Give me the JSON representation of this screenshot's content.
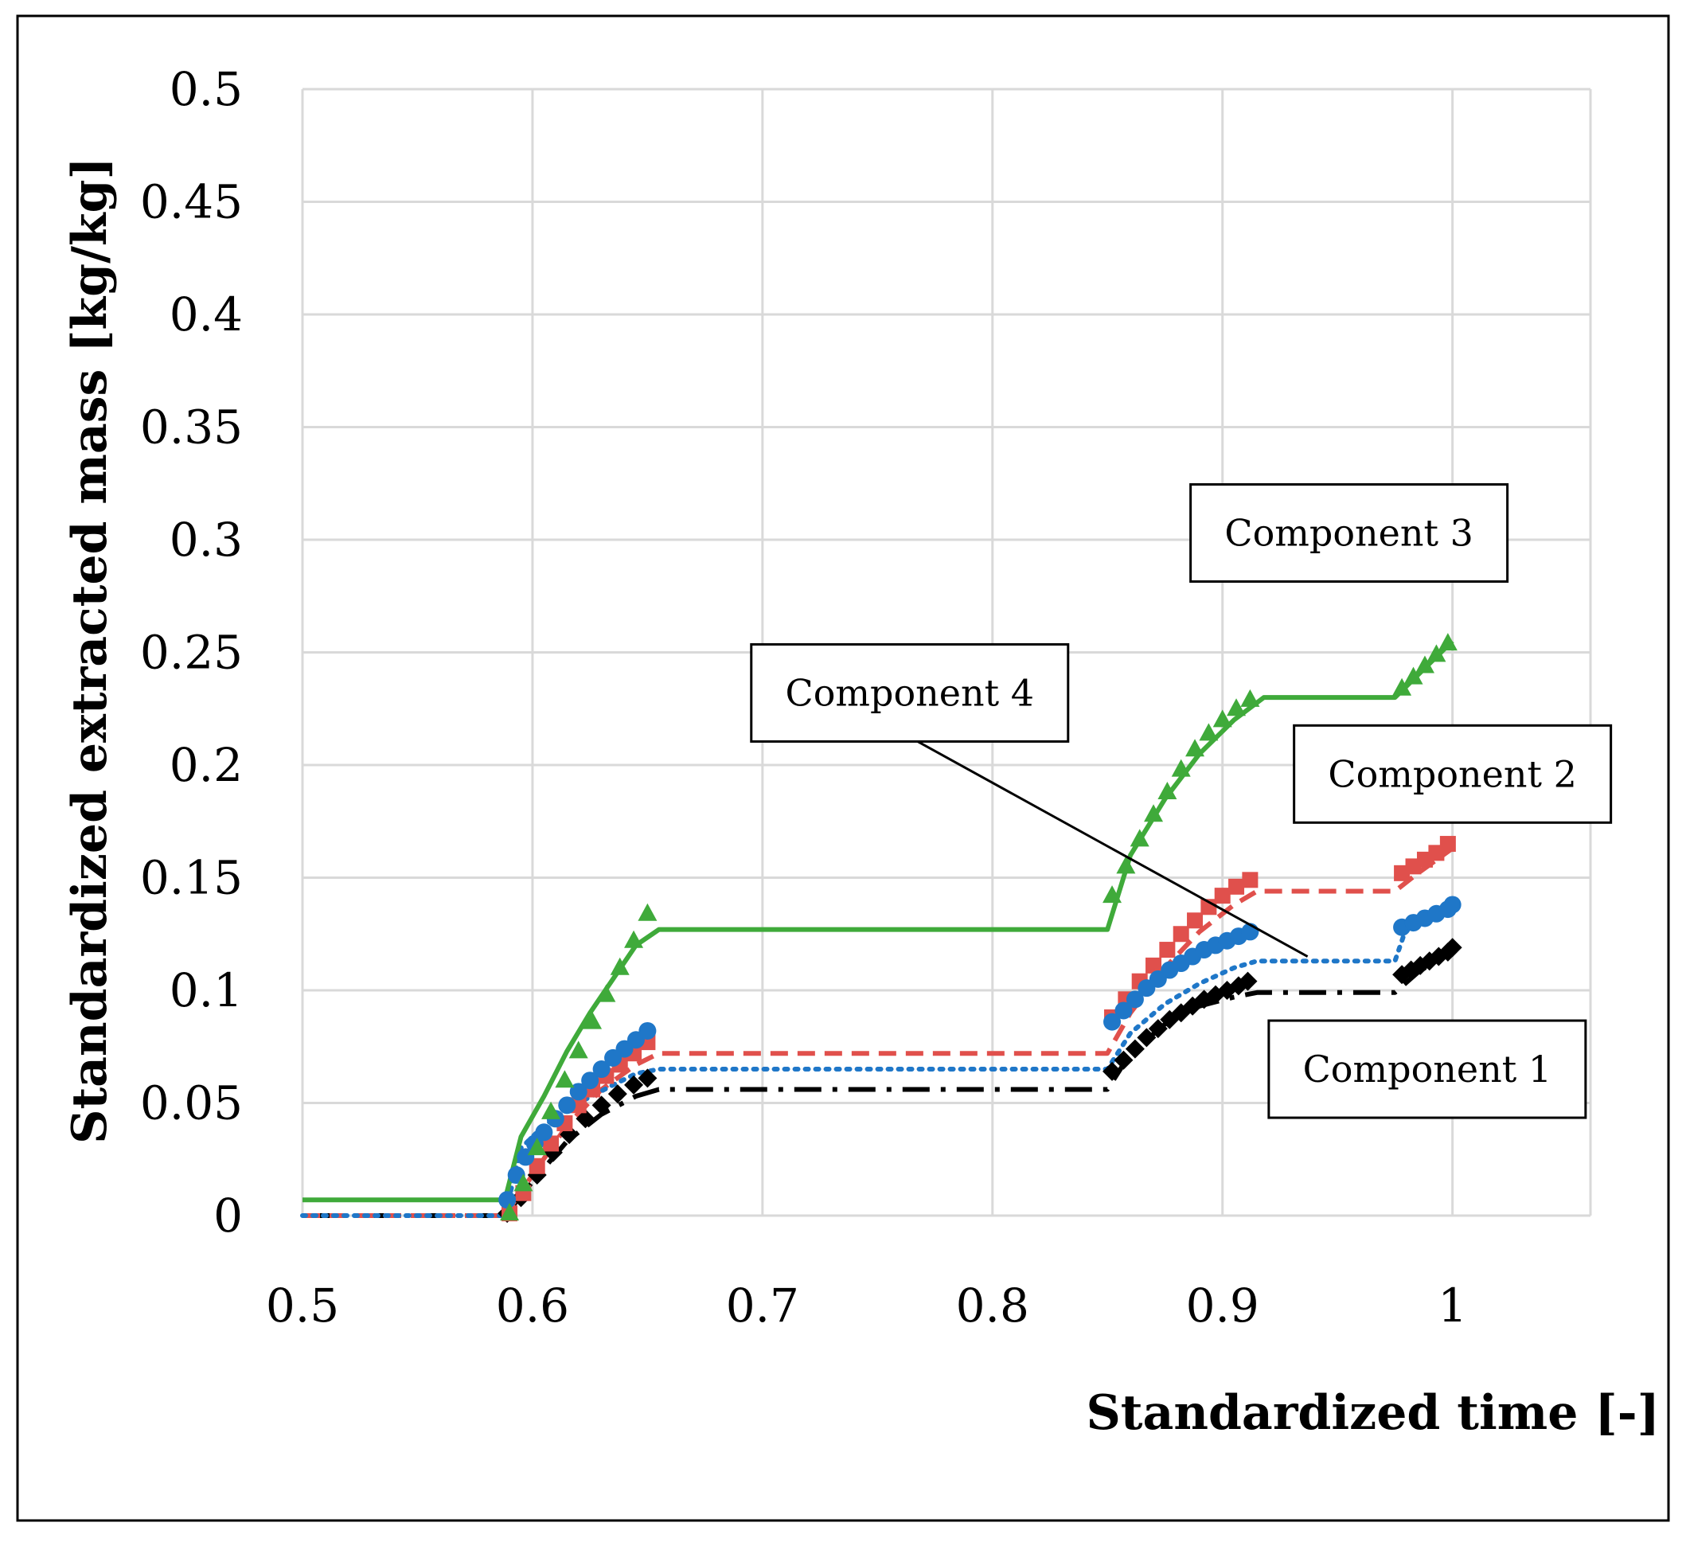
{
  "chart_data": {
    "type": "scatter",
    "title": "",
    "xlabel": "Standardized time [-]",
    "ylabel": "Standardized extracted mass [kg/kg]",
    "xlim": [
      0.5,
      1.06
    ],
    "ylim": [
      0,
      0.5
    ],
    "x_ticks": [
      0.5,
      0.6,
      0.7,
      0.8,
      0.9,
      1
    ],
    "x_tick_labels": [
      "0.5",
      "0.6",
      "0.7",
      "0.8",
      "0.9",
      "1"
    ],
    "y_ticks": [
      0,
      0.05,
      0.1,
      0.15,
      0.2,
      0.25,
      0.3,
      0.35,
      0.4,
      0.45,
      0.5
    ],
    "y_tick_labels": [
      "0",
      "0.05",
      "0.1",
      "0.15",
      "0.2",
      "0.25",
      "0.3",
      "0.35",
      "0.4",
      "0.45",
      "0.5"
    ],
    "grid": true,
    "legend": "none",
    "series": [
      {
        "name": "Component 1 data",
        "kind": "markers",
        "marker": "diamond",
        "color": "#000000",
        "x": [
          0.589,
          0.595,
          0.602,
          0.609,
          0.616,
          0.623,
          0.63,
          0.637,
          0.644,
          0.65,
          0.852,
          0.857,
          0.862,
          0.867,
          0.872,
          0.877,
          0.882,
          0.887,
          0.892,
          0.897,
          0.902,
          0.907,
          0.911,
          0.978,
          0.982,
          0.986,
          0.99,
          0.994,
          0.998,
          1.0
        ],
        "y": [
          0.001,
          0.008,
          0.018,
          0.028,
          0.036,
          0.043,
          0.049,
          0.054,
          0.058,
          0.061,
          0.064,
          0.069,
          0.074,
          0.079,
          0.083,
          0.087,
          0.09,
          0.093,
          0.096,
          0.098,
          0.1,
          0.102,
          0.104,
          0.107,
          0.109,
          0.111,
          0.113,
          0.115,
          0.117,
          0.119
        ]
      },
      {
        "name": "Component 1 model",
        "kind": "line",
        "dash": "dashdot",
        "color": "#000000",
        "x": [
          0.5,
          0.588,
          0.6,
          0.615,
          0.63,
          0.645,
          0.655,
          0.85,
          0.86,
          0.875,
          0.89,
          0.905,
          0.915,
          0.975,
          0.985,
          1.0
        ],
        "y": [
          0,
          0,
          0.015,
          0.033,
          0.045,
          0.053,
          0.056,
          0.056,
          0.072,
          0.085,
          0.093,
          0.097,
          0.099,
          0.099,
          0.108,
          0.118
        ]
      },
      {
        "name": "Component 2 data",
        "kind": "markers",
        "marker": "square",
        "color": "#e0504c",
        "x": [
          0.59,
          0.596,
          0.602,
          0.608,
          0.614,
          0.62,
          0.626,
          0.632,
          0.638,
          0.644,
          0.65,
          0.852,
          0.858,
          0.864,
          0.87,
          0.876,
          0.882,
          0.888,
          0.894,
          0.9,
          0.906,
          0.912,
          0.978,
          0.983,
          0.988,
          0.993,
          0.998
        ],
        "y": [
          0.001,
          0.01,
          0.022,
          0.032,
          0.041,
          0.049,
          0.056,
          0.062,
          0.067,
          0.072,
          0.077,
          0.088,
          0.096,
          0.104,
          0.111,
          0.118,
          0.125,
          0.131,
          0.137,
          0.142,
          0.146,
          0.149,
          0.152,
          0.155,
          0.158,
          0.161,
          0.165
        ]
      },
      {
        "name": "Component 2 model",
        "kind": "line",
        "dash": "dashed",
        "color": "#e0504c",
        "x": [
          0.5,
          0.588,
          0.6,
          0.615,
          0.63,
          0.645,
          0.655,
          0.85,
          0.86,
          0.875,
          0.89,
          0.905,
          0.915,
          0.975,
          0.985,
          1.0
        ],
        "y": [
          0,
          0,
          0.018,
          0.04,
          0.056,
          0.067,
          0.072,
          0.072,
          0.09,
          0.11,
          0.126,
          0.138,
          0.144,
          0.144,
          0.152,
          0.163
        ]
      },
      {
        "name": "Component 4 data",
        "kind": "markers",
        "marker": "circle",
        "color": "#1f77c8",
        "x": [
          0.589,
          0.593,
          0.597,
          0.601,
          0.605,
          0.61,
          0.615,
          0.62,
          0.625,
          0.63,
          0.635,
          0.64,
          0.645,
          0.65,
          0.852,
          0.857,
          0.862,
          0.867,
          0.872,
          0.877,
          0.882,
          0.887,
          0.892,
          0.897,
          0.902,
          0.907,
          0.912,
          0.978,
          0.983,
          0.988,
          0.993,
          0.998,
          1.0
        ],
        "y": [
          0.007,
          0.018,
          0.026,
          0.032,
          0.037,
          0.043,
          0.049,
          0.055,
          0.06,
          0.065,
          0.07,
          0.074,
          0.078,
          0.082,
          0.086,
          0.091,
          0.096,
          0.101,
          0.105,
          0.109,
          0.112,
          0.115,
          0.118,
          0.12,
          0.122,
          0.124,
          0.126,
          0.128,
          0.13,
          0.132,
          0.134,
          0.136,
          0.138
        ]
      },
      {
        "name": "Component 4 model",
        "kind": "line",
        "dash": "dotted",
        "color": "#1f77c8",
        "x": [
          0.5,
          0.588,
          0.595,
          0.605,
          0.62,
          0.635,
          0.645,
          0.655,
          0.85,
          0.86,
          0.875,
          0.89,
          0.905,
          0.915,
          0.975,
          0.98,
          1.0
        ],
        "y": [
          0,
          0,
          0.03,
          0.04,
          0.05,
          0.058,
          0.063,
          0.065,
          0.065,
          0.081,
          0.094,
          0.103,
          0.11,
          0.113,
          0.113,
          0.128,
          0.137
        ]
      },
      {
        "name": "Component 3 data",
        "kind": "markers",
        "marker": "triangle",
        "color": "#3faa3a",
        "x": [
          0.59,
          0.596,
          0.602,
          0.608,
          0.614,
          0.62,
          0.626,
          0.632,
          0.638,
          0.644,
          0.65,
          0.852,
          0.858,
          0.864,
          0.87,
          0.876,
          0.882,
          0.888,
          0.894,
          0.9,
          0.906,
          0.912,
          0.978,
          0.983,
          0.988,
          0.993,
          0.998
        ],
        "y": [
          0.001,
          0.014,
          0.03,
          0.046,
          0.06,
          0.073,
          0.086,
          0.098,
          0.11,
          0.122,
          0.134,
          0.142,
          0.155,
          0.167,
          0.178,
          0.188,
          0.198,
          0.207,
          0.214,
          0.22,
          0.225,
          0.229,
          0.234,
          0.239,
          0.244,
          0.249,
          0.254
        ]
      },
      {
        "name": "Component 3 model",
        "kind": "line",
        "dash": "solid",
        "color": "#3faa3a",
        "x": [
          0.5,
          0.588,
          0.595,
          0.605,
          0.615,
          0.625,
          0.635,
          0.645,
          0.655,
          0.85,
          0.86,
          0.875,
          0.89,
          0.905,
          0.918,
          0.975,
          0.99,
          1.0
        ],
        "y": [
          0.007,
          0.007,
          0.035,
          0.053,
          0.073,
          0.09,
          0.105,
          0.12,
          0.127,
          0.127,
          0.16,
          0.185,
          0.205,
          0.22,
          0.23,
          0.23,
          0.245,
          0.255
        ]
      }
    ],
    "annotations": [
      {
        "text": "Component 3",
        "box_data": {
          "x_center": 0.955,
          "y_center": 0.303
        },
        "callout": false
      },
      {
        "text": "Component 4",
        "box_data": {
          "x_center": 0.764,
          "y_center": 0.232
        },
        "callout": true,
        "arrow_to": {
          "x": 0.937,
          "y": 0.115
        }
      },
      {
        "text": "Component 2",
        "box_data": {
          "x_center": 1.0,
          "y_center": 0.196
        },
        "callout": false
      },
      {
        "text": "Component 1",
        "box_data": {
          "x_center": 0.989,
          "y_center": 0.065
        },
        "callout": false
      }
    ]
  }
}
